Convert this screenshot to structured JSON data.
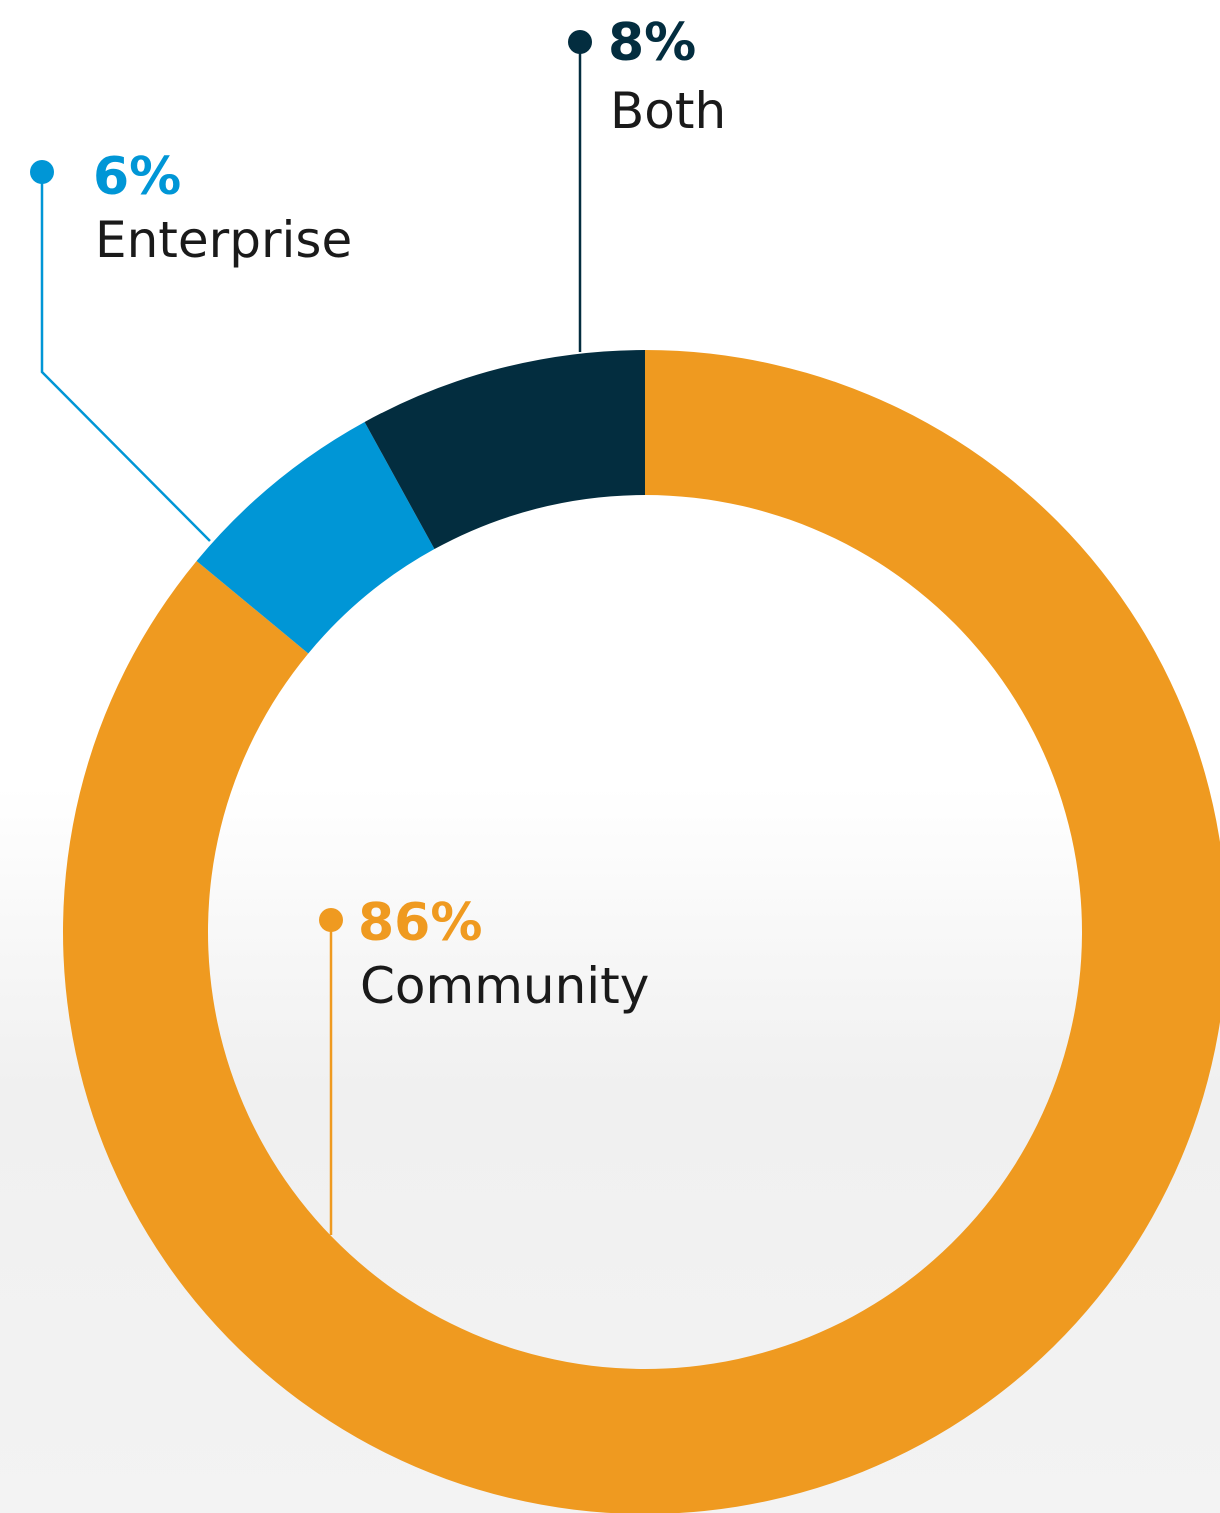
{
  "chart_data": {
    "type": "pie",
    "style": "donut",
    "slices": [
      {
        "label": "Community",
        "value": 86,
        "value_label": "86%",
        "color": "#EF9A20"
      },
      {
        "label": "Enterprise",
        "value": 6,
        "value_label": "6%",
        "color": "#0096D6"
      },
      {
        "label": "Both",
        "value": 8,
        "value_label": "8%",
        "color": "#032D3F"
      }
    ],
    "title": "",
    "legend": "none"
  }
}
